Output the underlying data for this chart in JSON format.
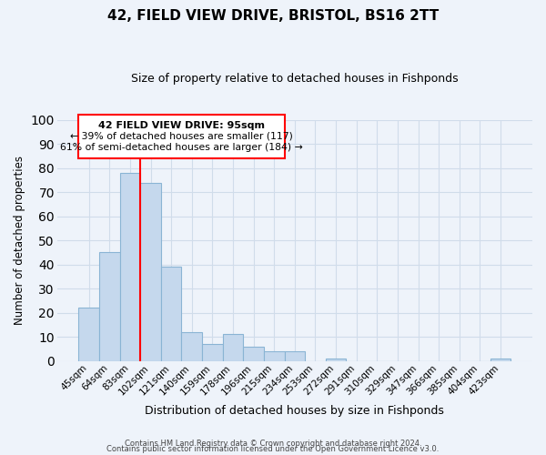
{
  "title": "42, FIELD VIEW DRIVE, BRISTOL, BS16 2TT",
  "subtitle": "Size of property relative to detached houses in Fishponds",
  "xlabel": "Distribution of detached houses by size in Fishponds",
  "ylabel": "Number of detached properties",
  "bar_labels": [
    "45sqm",
    "64sqm",
    "83sqm",
    "102sqm",
    "121sqm",
    "140sqm",
    "159sqm",
    "178sqm",
    "196sqm",
    "215sqm",
    "234sqm",
    "253sqm",
    "272sqm",
    "291sqm",
    "310sqm",
    "329sqm",
    "347sqm",
    "366sqm",
    "385sqm",
    "404sqm",
    "423sqm"
  ],
  "bar_values": [
    22,
    45,
    78,
    74,
    39,
    12,
    7,
    11,
    6,
    4,
    4,
    0,
    1,
    0,
    0,
    0,
    0,
    0,
    0,
    0,
    1
  ],
  "bar_color": "#c5d8ed",
  "bar_edge_color": "#8ab4d4",
  "vline_x": 2.5,
  "vline_color": "red",
  "ann_line1": "42 FIELD VIEW DRIVE: 95sqm",
  "ann_line2": "← 39% of detached houses are smaller (117)",
  "ann_line3": "61% of semi-detached houses are larger (184) →",
  "footer_line1": "Contains HM Land Registry data © Crown copyright and database right 2024.",
  "footer_line2": "Contains public sector information licensed under the Open Government Licence v3.0.",
  "ylim": [
    0,
    100
  ],
  "grid_color": "#d0dcea",
  "bg_color": "#eef3fa",
  "plot_bg": "#eef3fa"
}
